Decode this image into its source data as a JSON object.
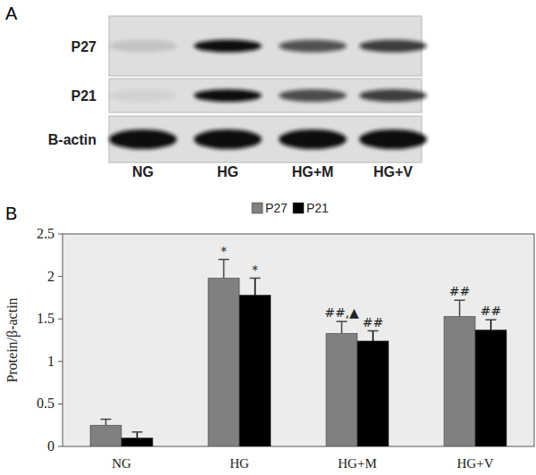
{
  "blot": {
    "label": "A",
    "rows": [
      "P27",
      "P21",
      "B-actin"
    ],
    "lanes": [
      "NG",
      "HG",
      "HG+M",
      "HG+V"
    ]
  },
  "chart_data": {
    "type": "bar",
    "panel_label": "B",
    "y_label": "Protein/β-actin",
    "categories": [
      "NG",
      "HG",
      "HG+M",
      "HG+V"
    ],
    "series": [
      {
        "name": "P27",
        "color": "#808080",
        "values": [
          0.25,
          1.98,
          1.33,
          1.53
        ],
        "errors": [
          0.07,
          0.22,
          0.14,
          0.19
        ],
        "annotations": [
          null,
          "*",
          "##,▲",
          "##"
        ]
      },
      {
        "name": "P21",
        "color": "#000000",
        "values": [
          0.1,
          1.78,
          1.24,
          1.37
        ],
        "errors": [
          0.07,
          0.2,
          0.12,
          0.12
        ],
        "annotations": [
          null,
          "*",
          "##",
          "##"
        ]
      }
    ],
    "ylim": [
      0,
      2.5
    ],
    "yticks": [
      0,
      0.5,
      1,
      1.5,
      2,
      2.5
    ],
    "legend": "top",
    "grid": false
  }
}
